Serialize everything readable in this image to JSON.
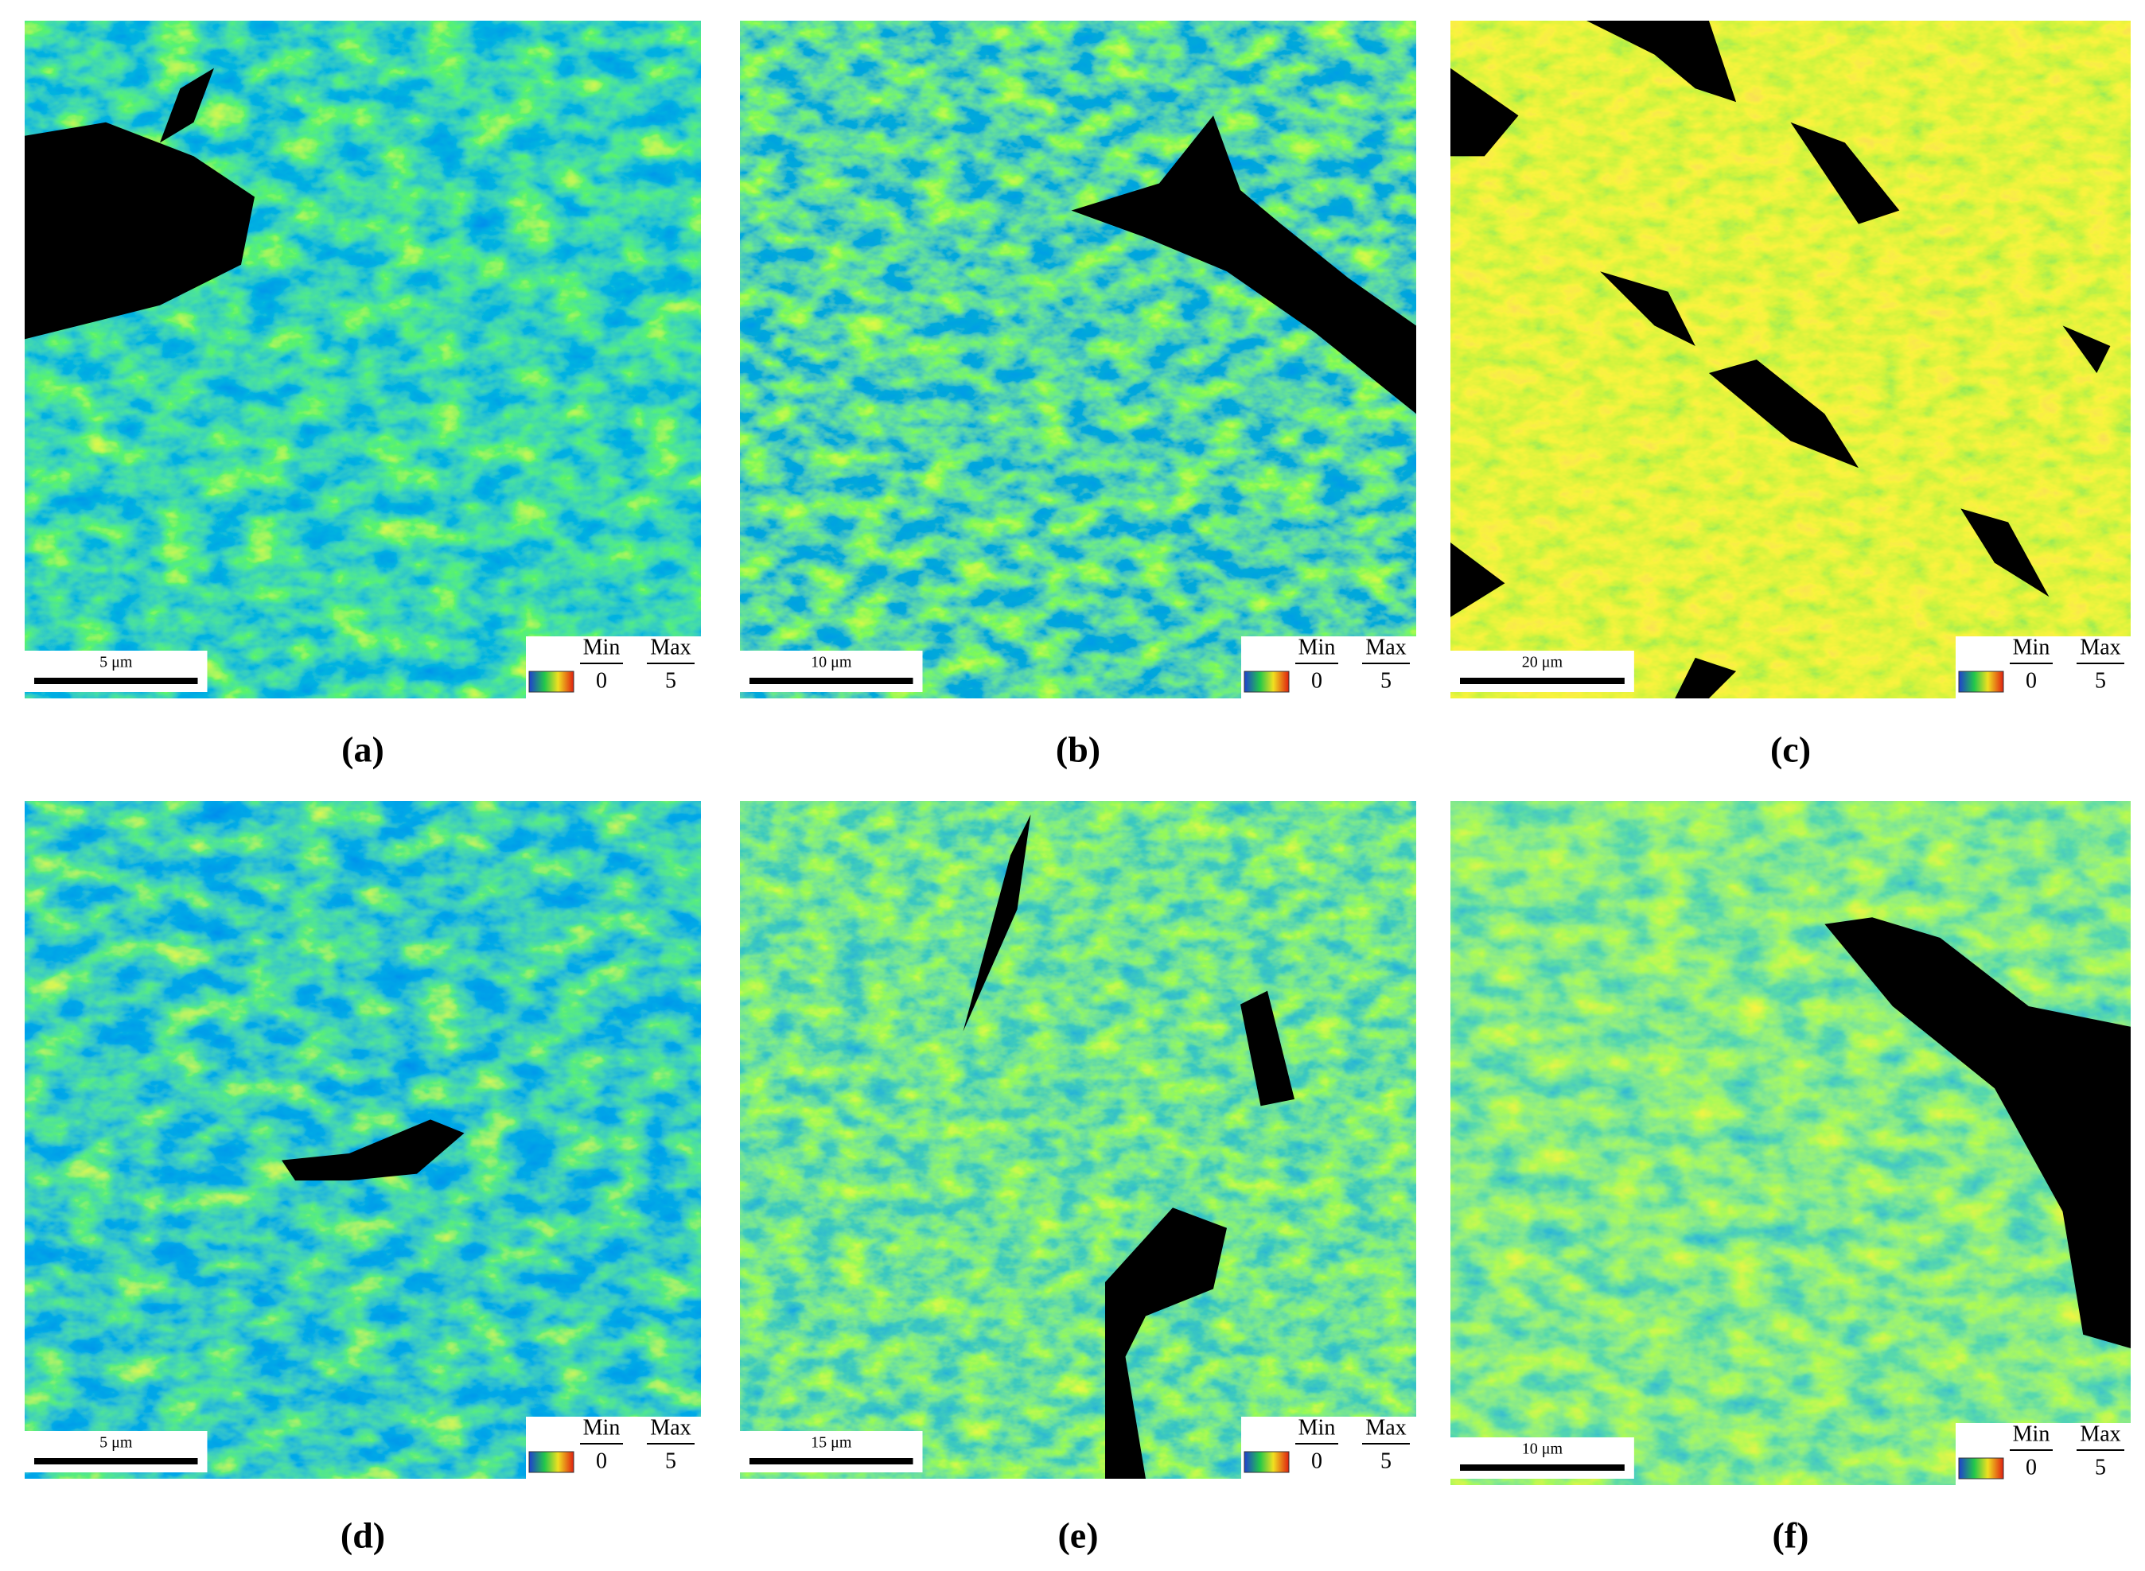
{
  "panels": [
    {
      "label": "(a)",
      "scale_bar": "5 μm",
      "legend": {
        "min_label": "Min",
        "max_label": "Max",
        "min": 0,
        "max": 5
      }
    },
    {
      "label": "(b)",
      "scale_bar": "10 μm",
      "legend": {
        "min_label": "Min",
        "max_label": "Max",
        "min": 0,
        "max": 5
      }
    },
    {
      "label": "(c)",
      "scale_bar": "20 μm",
      "legend": {
        "min_label": "Min",
        "max_label": "Max",
        "min": 0,
        "max": 5
      }
    },
    {
      "label": "(d)",
      "scale_bar": "5 μm",
      "legend": {
        "min_label": "Min",
        "max_label": "Max",
        "min": 0,
        "max": 5
      }
    },
    {
      "label": "(e)",
      "scale_bar": "15 μm",
      "legend": {
        "min_label": "Min",
        "max_label": "Max",
        "min": 0,
        "max": 5
      }
    },
    {
      "label": "(f)",
      "scale_bar": "10 μm",
      "legend": {
        "min_label": "Min",
        "max_label": "Max",
        "min": 0,
        "max": 5
      }
    }
  ]
}
